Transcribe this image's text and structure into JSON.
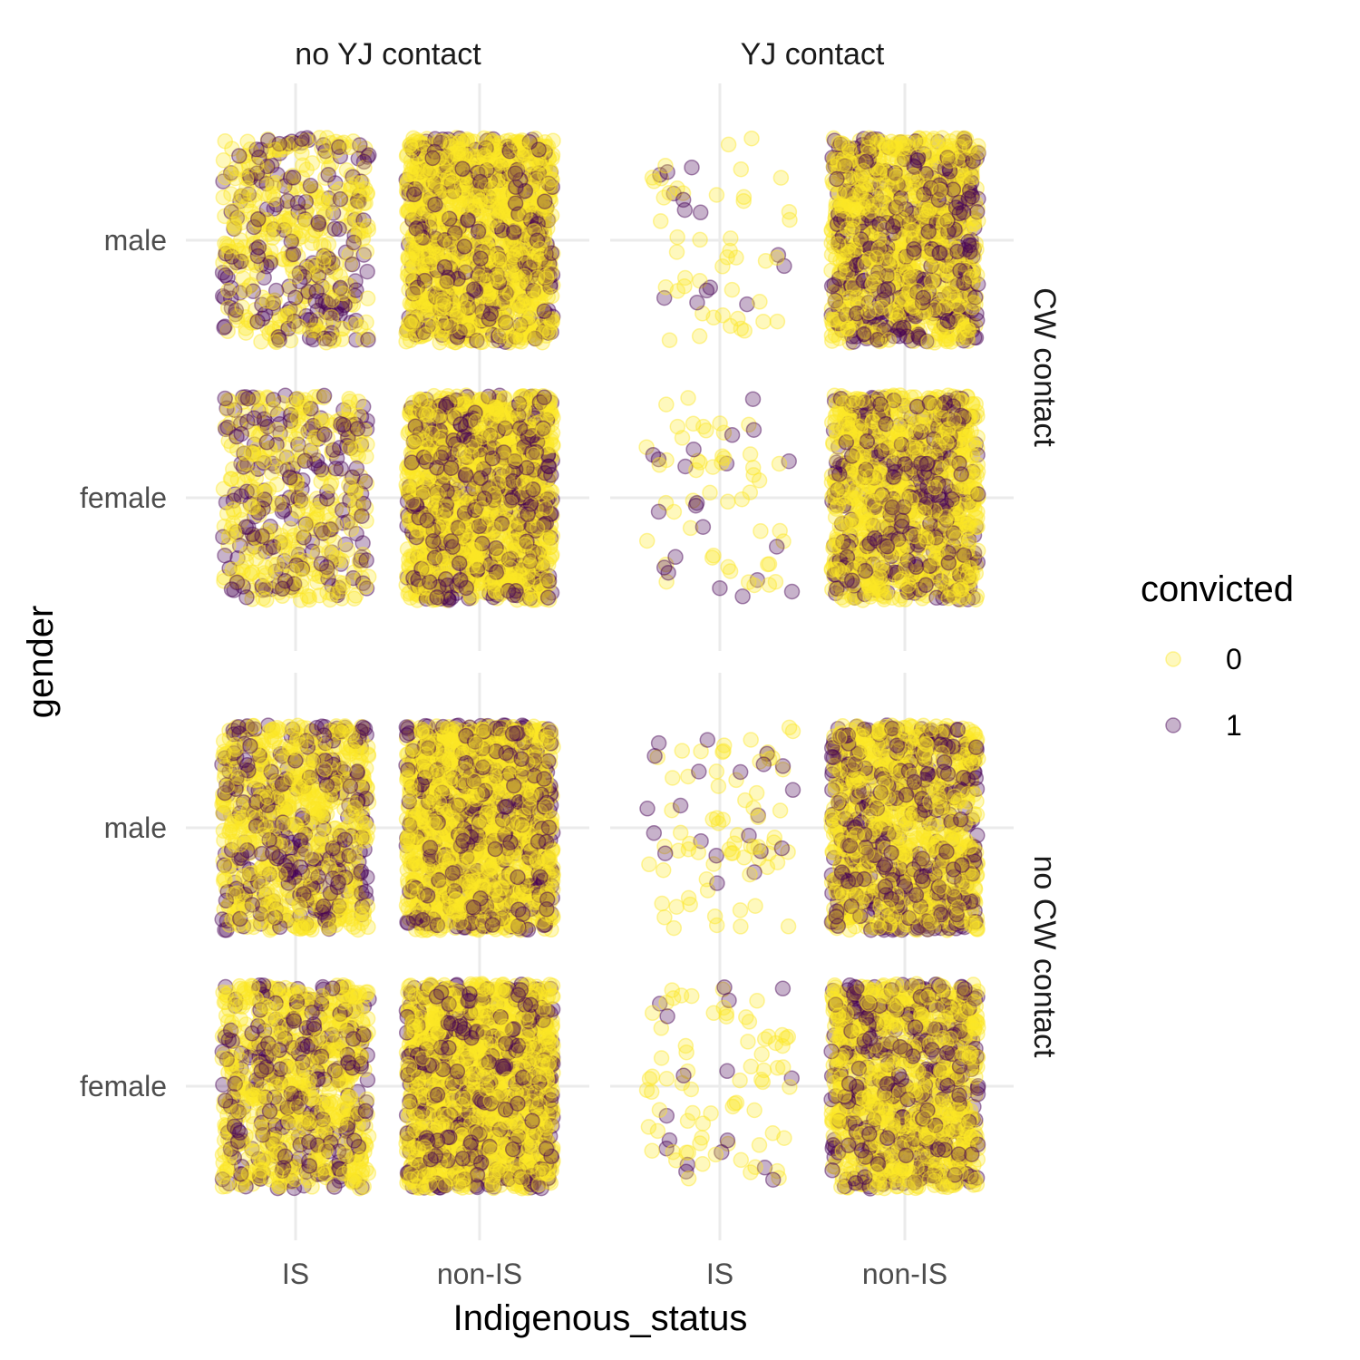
{
  "chart_data": {
    "type": "scatter",
    "style": "jittered faceted scatter (facet_grid)",
    "xlabel": "Indigenous_status",
    "ylabel": "gender",
    "x_categories": [
      "IS",
      "non-IS"
    ],
    "y_categories": [
      "male",
      "female"
    ],
    "facet_columns": [
      "no YJ contact",
      "YJ contact"
    ],
    "facet_rows": [
      "CW contact",
      "no CW contact"
    ],
    "legend": {
      "title": "convicted",
      "placement": "right",
      "entries": [
        {
          "label": "0",
          "color": "#FDE725"
        },
        {
          "label": "1",
          "color": "#440154"
        }
      ]
    },
    "point_alpha": 0.3,
    "grid": true,
    "cells": [
      {
        "row": "CW contact",
        "col": "no YJ contact",
        "x": "IS",
        "y": "male",
        "n_points": 500,
        "share_convicted": 0.35
      },
      {
        "row": "CW contact",
        "col": "no YJ contact",
        "x": "non-IS",
        "y": "male",
        "n_points": 1600,
        "share_convicted": 0.25
      },
      {
        "row": "CW contact",
        "col": "no YJ contact",
        "x": "IS",
        "y": "female",
        "n_points": 500,
        "share_convicted": 0.35
      },
      {
        "row": "CW contact",
        "col": "no YJ contact",
        "x": "non-IS",
        "y": "female",
        "n_points": 1600,
        "share_convicted": 0.25
      },
      {
        "row": "CW contact",
        "col": "YJ contact",
        "x": "IS",
        "y": "male",
        "n_points": 60,
        "share_convicted": 0.2
      },
      {
        "row": "CW contact",
        "col": "YJ contact",
        "x": "non-IS",
        "y": "male",
        "n_points": 1300,
        "share_convicted": 0.3
      },
      {
        "row": "CW contact",
        "col": "YJ contact",
        "x": "IS",
        "y": "female",
        "n_points": 70,
        "share_convicted": 0.35
      },
      {
        "row": "CW contact",
        "col": "YJ contact",
        "x": "non-IS",
        "y": "female",
        "n_points": 1300,
        "share_convicted": 0.3
      },
      {
        "row": "no CW contact",
        "col": "no YJ contact",
        "x": "IS",
        "y": "male",
        "n_points": 900,
        "share_convicted": 0.3
      },
      {
        "row": "no CW contact",
        "col": "no YJ contact",
        "x": "non-IS",
        "y": "male",
        "n_points": 1800,
        "share_convicted": 0.25
      },
      {
        "row": "no CW contact",
        "col": "no YJ contact",
        "x": "IS",
        "y": "female",
        "n_points": 900,
        "share_convicted": 0.3
      },
      {
        "row": "no CW contact",
        "col": "no YJ contact",
        "x": "non-IS",
        "y": "female",
        "n_points": 1800,
        "share_convicted": 0.25
      },
      {
        "row": "no CW contact",
        "col": "YJ contact",
        "x": "IS",
        "y": "male",
        "n_points": 90,
        "share_convicted": 0.25
      },
      {
        "row": "no CW contact",
        "col": "YJ contact",
        "x": "non-IS",
        "y": "male",
        "n_points": 1300,
        "share_convicted": 0.3
      },
      {
        "row": "no CW contact",
        "col": "YJ contact",
        "x": "IS",
        "y": "female",
        "n_points": 90,
        "share_convicted": 0.25
      },
      {
        "row": "no CW contact",
        "col": "YJ contact",
        "x": "non-IS",
        "y": "female",
        "n_points": 1300,
        "share_convicted": 0.3
      }
    ]
  }
}
